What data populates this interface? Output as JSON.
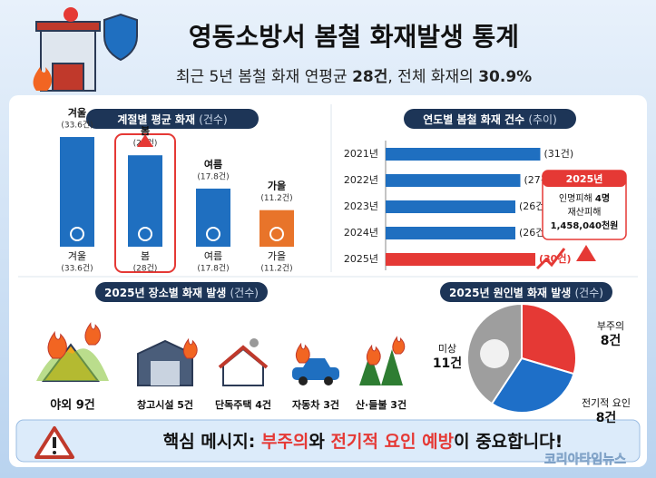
{
  "header": {
    "title": "영동소방서 봄철 화재발생 통계",
    "subtitle": [
      "최근 5년 봄철 화재 연평균 ",
      "28건",
      ", 전체 화재의 ",
      "30.9%"
    ]
  },
  "chart_data": [
    {
      "type": "bar",
      "title": "계절별 평균 화재",
      "unit": "(건수)",
      "categories": [
        "겨울",
        "봄",
        "여름",
        "가을"
      ],
      "values": [
        33.6,
        28,
        17.8,
        11.2
      ],
      "value_labels": [
        "(33.6건)",
        "(28건)",
        "(17.8건)",
        "(11.2건)"
      ],
      "colors": [
        "#1f6fc0",
        "#1f6fc0",
        "#1f6fc0",
        "#e8742a"
      ],
      "highlight": 1
    },
    {
      "type": "hbar",
      "title": "연도별 봄철 화재 건수",
      "unit": "(추이)",
      "categories": [
        "2021년",
        "2022년",
        "2023년",
        "2024년",
        "2025년"
      ],
      "values": [
        31,
        27,
        26,
        26,
        30
      ],
      "value_labels": [
        "(31건)",
        "(27건)",
        "(26건)",
        "(26건)",
        "(30건)"
      ],
      "colors": [
        "#1f6fc0",
        "#1f6fc0",
        "#1f6fc0",
        "#1f6fc0",
        "#e53935"
      ],
      "callout": {
        "title": "2025년",
        "lines": [
          [
            "인명피해 ",
            "4명"
          ],
          [
            "재산피해"
          ],
          [
            "1,458,040천원"
          ]
        ]
      }
    },
    {
      "type": "icons",
      "title": "2025년 장소별 화재 발생",
      "unit": "(건수)",
      "categories": [
        "야외 9건",
        "창고시설 5건",
        "단독주택 4건",
        "자동차 3건",
        "산·들불 3건"
      ]
    },
    {
      "type": "pie",
      "title": "2025년 원인별 화재 발생",
      "unit": "(건수)",
      "categories": [
        "부주의",
        "전기적 요인",
        "미상"
      ],
      "values": [
        8,
        8,
        11
      ],
      "value_labels": [
        "8건",
        "8건",
        "11건"
      ],
      "colors": [
        "#e53935",
        "#1e6fc8",
        "#9e9e9e"
      ]
    }
  ],
  "footer": [
    "핵심 메시지: ",
    "부주의",
    "와 ",
    "전기적 요인 예방",
    "이 중요합니다!"
  ],
  "watermark": "코리아타임뉴스"
}
